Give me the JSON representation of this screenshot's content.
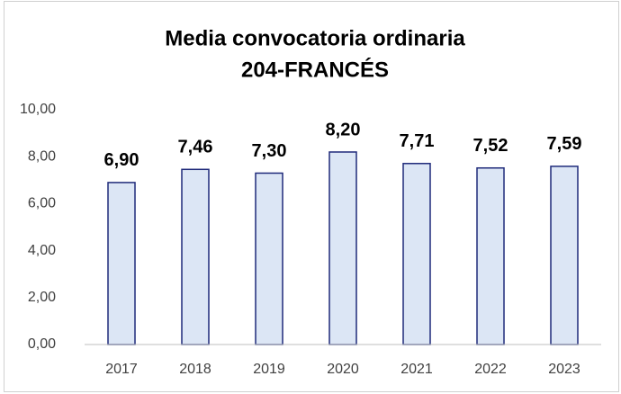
{
  "chart_data": {
    "type": "bar",
    "title": "Media convocatoria ordinaria",
    "subtitle": "204-FRANCÉS",
    "categories": [
      "2017",
      "2018",
      "2019",
      "2020",
      "2021",
      "2022",
      "2023"
    ],
    "values": [
      6.9,
      7.46,
      7.3,
      8.2,
      7.71,
      7.52,
      7.59
    ],
    "value_labels": [
      "6,90",
      "7,46",
      "7,30",
      "8,20",
      "7,71",
      "7,52",
      "7,59"
    ],
    "color": "#dce6f5",
    "edge_color": "#1f2a7a",
    "ylim": [
      0,
      10
    ],
    "yticks": [
      {
        "value": 0,
        "label": "0,00"
      },
      {
        "value": 2,
        "label": "2,00"
      },
      {
        "value": 4,
        "label": "4,00"
      },
      {
        "value": 6,
        "label": "6,00"
      },
      {
        "value": 8,
        "label": "8,00"
      },
      {
        "value": 10,
        "label": "10,00"
      }
    ],
    "grid": false
  }
}
